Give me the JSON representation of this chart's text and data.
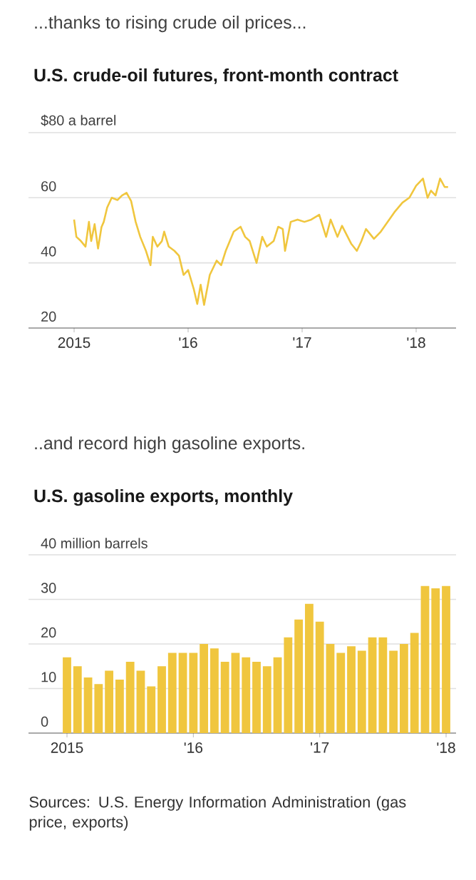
{
  "chart_data": [
    {
      "type": "line",
      "subtitle": "...thanks to rising crude oil prices...",
      "title": "U.S. crude-oil futures, front-month contract",
      "color": "#f0c63e",
      "grid": "y",
      "xlim": [
        2014.6,
        2018.35
      ],
      "ylim": [
        20,
        80
      ],
      "xticks": [
        {
          "value": 2015,
          "label": "2015"
        },
        {
          "value": 2016,
          "label": "'16"
        },
        {
          "value": 2017,
          "label": "'17"
        },
        {
          "value": 2018,
          "label": "'18"
        }
      ],
      "yticks": [
        20,
        40,
        60,
        {
          "value": 80,
          "label": "$80 a barrel"
        }
      ],
      "x": [
        2015.0,
        2015.02,
        2015.06,
        2015.1,
        2015.13,
        2015.15,
        2015.18,
        2015.21,
        2015.24,
        2015.26,
        2015.29,
        2015.33,
        2015.38,
        2015.42,
        2015.46,
        2015.5,
        2015.54,
        2015.58,
        2015.63,
        2015.67,
        2015.69,
        2015.73,
        2015.77,
        2015.79,
        2015.83,
        2015.88,
        2015.92,
        2015.96,
        2016.0,
        2016.05,
        2016.08,
        2016.11,
        2016.14,
        2016.19,
        2016.25,
        2016.29,
        2016.33,
        2016.4,
        2016.46,
        2016.5,
        2016.54,
        2016.6,
        2016.65,
        2016.69,
        2016.75,
        2016.79,
        2016.83,
        2016.85,
        2016.9,
        2016.96,
        2017.02,
        2017.08,
        2017.15,
        2017.21,
        2017.25,
        2017.31,
        2017.35,
        2017.43,
        2017.48,
        2017.52,
        2017.56,
        2017.63,
        2017.69,
        2017.75,
        2017.81,
        2017.88,
        2017.94,
        2018.0,
        2018.06,
        2018.1,
        2018.13,
        2018.17,
        2018.21,
        2018.25,
        2018.28
      ],
      "values": [
        53.3,
        48,
        46.7,
        45,
        52.6,
        46.7,
        51.9,
        44.4,
        51,
        52.6,
        57,
        60,
        59.3,
        60.7,
        61.5,
        59,
        52.6,
        48,
        43.7,
        39.3,
        48,
        45,
        46.7,
        49.6,
        45,
        43.7,
        42.2,
        36.3,
        37.8,
        31.9,
        27.4,
        33.3,
        27.1,
        36.3,
        40.7,
        39.3,
        43.7,
        49.6,
        51.1,
        48,
        46.7,
        40,
        48,
        45,
        46.7,
        51.1,
        50.4,
        43.7,
        52.6,
        53.3,
        52.6,
        53.3,
        54.8,
        48,
        53.3,
        48,
        51.4,
        45.9,
        43.7,
        46.7,
        50.4,
        47.4,
        49.6,
        52.6,
        55.6,
        58.5,
        60,
        63.7,
        65.9,
        60,
        62.2,
        60.7,
        65.9,
        63.3,
        63.3
      ]
    },
    {
      "type": "bar",
      "subtitle": "..and record high gasoline exports.",
      "title": "U.S. gasoline exports, monthly",
      "color": "#f0c63e",
      "grid": "y",
      "ylim": [
        0,
        40
      ],
      "yticks": [
        0,
        10,
        20,
        30,
        {
          "value": 40,
          "label": "40 million barrels"
        }
      ],
      "categories": [
        "2015",
        null,
        null,
        null,
        null,
        null,
        null,
        null,
        null,
        null,
        null,
        null,
        "'16",
        null,
        null,
        null,
        null,
        null,
        null,
        null,
        null,
        null,
        null,
        null,
        "'17",
        null,
        null,
        null,
        null,
        null,
        null,
        null,
        null,
        null,
        null,
        null,
        "'18"
      ],
      "values": [
        17,
        15,
        12.5,
        11,
        14,
        12,
        16,
        14,
        10.5,
        15,
        18,
        18,
        18,
        20,
        19,
        16,
        18,
        17,
        16,
        15,
        17,
        21.5,
        25.5,
        29,
        25,
        20,
        18,
        19.5,
        18.5,
        21.5,
        21.5,
        18.5,
        20,
        22.5,
        33,
        32.5,
        33
      ],
      "annotations": [
        "Sources: U.S. Energy Information Administration (gas price, exports)"
      ]
    }
  ]
}
